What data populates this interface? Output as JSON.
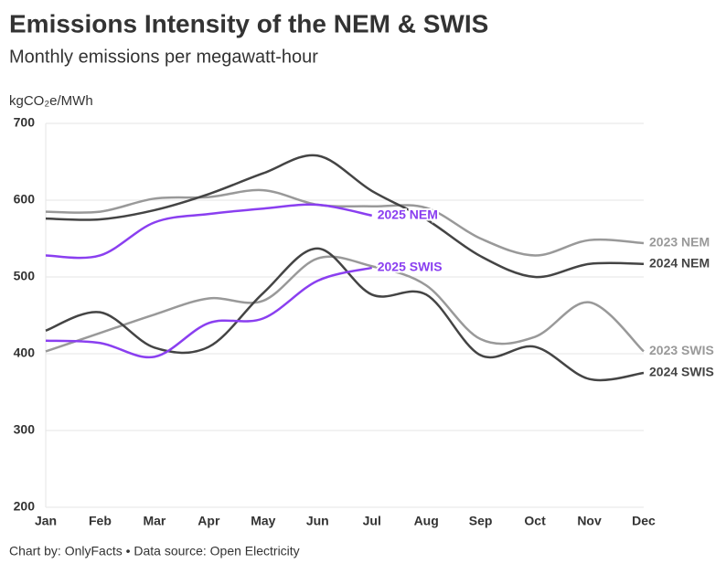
{
  "chart_data": {
    "type": "line",
    "title": "Emissions Intensity of the NEM & SWIS",
    "subtitle": "Monthly emissions per megawatt-hour",
    "y_label": "kgCO₂e/MWh",
    "footer": "Chart by: OnlyFacts • Data source: Open Electricity",
    "categories": [
      "Jan",
      "Feb",
      "Mar",
      "Apr",
      "May",
      "Jun",
      "Jul",
      "Aug",
      "Sep",
      "Oct",
      "Nov",
      "Dec"
    ],
    "ylim": [
      200,
      700
    ],
    "yticks": [
      200,
      300,
      400,
      500,
      600,
      700
    ],
    "grid": true,
    "series": [
      {
        "name": "2023 NEM",
        "color": "#999999",
        "values": [
          585,
          585,
          602,
          604,
          613,
          594,
          592,
          590,
          550,
          528,
          548,
          544
        ]
      },
      {
        "name": "2024 NEM",
        "color": "#444444",
        "values": [
          576,
          575,
          587,
          608,
          635,
          658,
          612,
          575,
          527,
          500,
          517,
          517
        ]
      },
      {
        "name": "2023 SWIS",
        "color": "#999999",
        "values": [
          403,
          427,
          451,
          472,
          469,
          524,
          514,
          489,
          419,
          422,
          467,
          403
        ]
      },
      {
        "name": "2024 SWIS",
        "color": "#444444",
        "values": [
          430,
          454,
          408,
          409,
          479,
          537,
          477,
          477,
          398,
          409,
          367,
          375
        ]
      },
      {
        "name": "2025 NEM",
        "color": "#8a3ff0",
        "values": [
          528,
          528,
          571,
          582,
          589,
          594,
          580,
          null,
          null,
          null,
          null,
          null
        ]
      },
      {
        "name": "2025 SWIS",
        "color": "#8a3ff0",
        "values": [
          417,
          414,
          396,
          440,
          446,
          495,
          512,
          null,
          null,
          null,
          null,
          null
        ]
      }
    ]
  }
}
